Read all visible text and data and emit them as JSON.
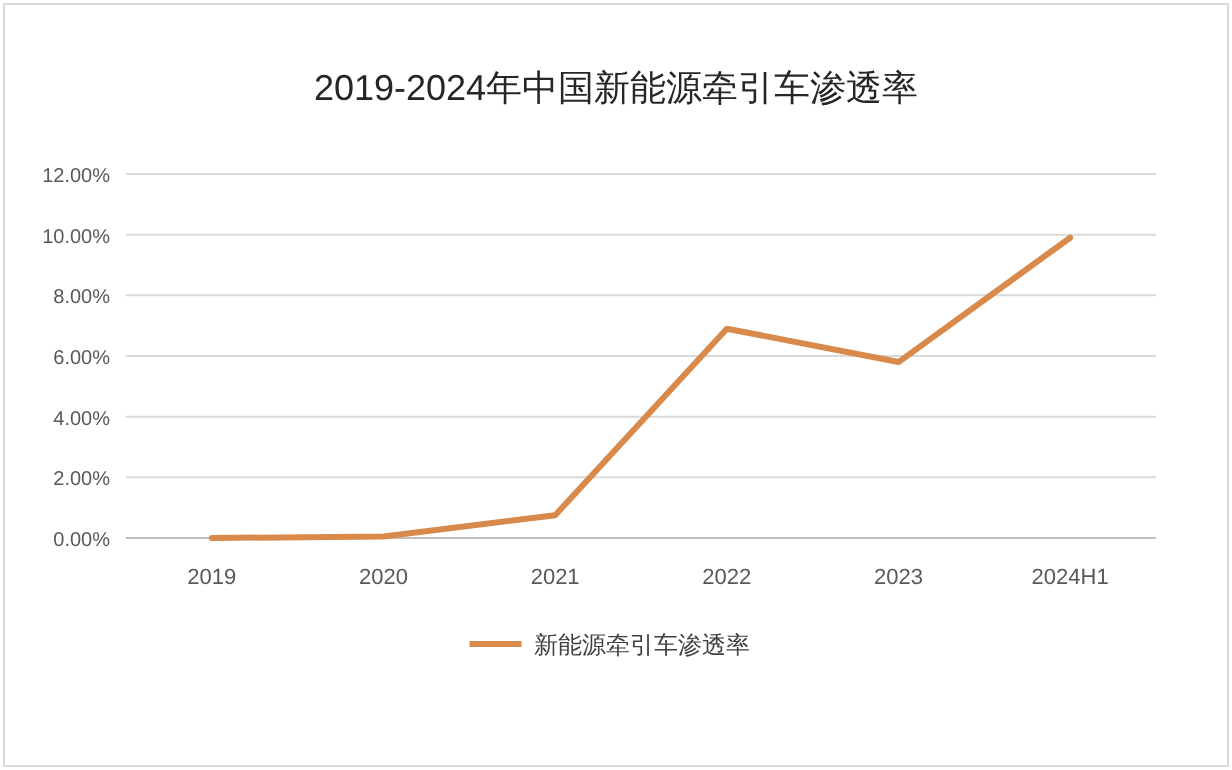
{
  "chart_data": {
    "type": "line",
    "title": "2019-2024年中国新能源牵引车渗透率",
    "categories": [
      "2019",
      "2020",
      "2021",
      "2022",
      "2023",
      "2024H1"
    ],
    "series": [
      {
        "name": "新能源牵引车渗透率",
        "color": "#d9894a",
        "values": [
          0,
          0.05,
          0.75,
          6.9,
          5.8,
          9.9
        ]
      }
    ],
    "ylim": [
      0,
      12
    ],
    "yticks": [
      {
        "value": 0,
        "label": "0.00%"
      },
      {
        "value": 2,
        "label": "2.00%"
      },
      {
        "value": 4,
        "label": "4.00%"
      },
      {
        "value": 6,
        "label": "6.00%"
      },
      {
        "value": 8,
        "label": "8.00%"
      },
      {
        "value": 10,
        "label": "10.00%"
      },
      {
        "value": 12,
        "label": "12.00%"
      }
    ],
    "grid": "y",
    "legend": "bottom",
    "marker": "none",
    "line_style": "solid"
  }
}
